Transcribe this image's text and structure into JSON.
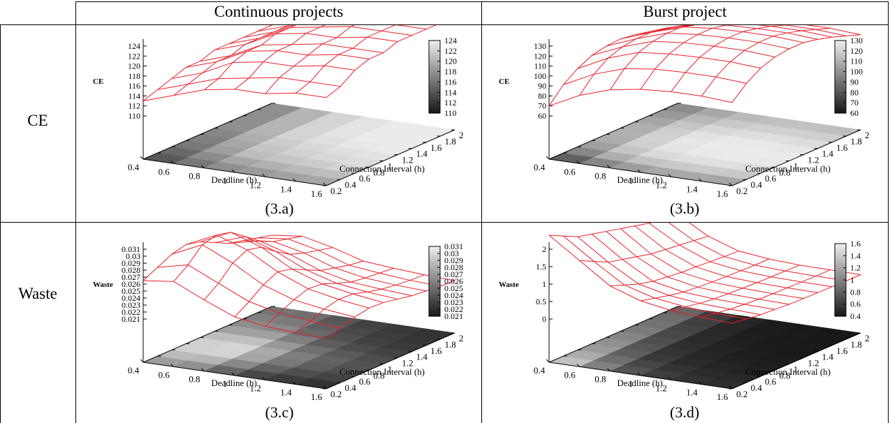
{
  "table": {
    "col_headers": [
      "Continuous projects",
      "Burst project"
    ],
    "row_labels": [
      "CE",
      "Waste"
    ]
  },
  "chart_data": [
    {
      "type": "surface3d",
      "panel": "(3.a)",
      "zlabel": "CE",
      "xlabel": "Deadline (h)",
      "ylabel": "Connection Interval (h)",
      "x_ticks": [
        0.4,
        0.6,
        0.8,
        1,
        1.2,
        1.4,
        1.6
      ],
      "y_ticks": [
        0.2,
        0.4,
        0.6,
        0.8,
        1,
        1.2,
        1.4,
        1.6,
        1.8,
        2
      ],
      "x_tick_labels": [
        "0.4",
        "0.6",
        "0.8",
        "1",
        "1.2",
        "1.4",
        "1.6"
      ],
      "y_tick_labels": [
        "0.2",
        "0.4",
        "0.6",
        "0.8",
        "1",
        "1.2",
        "1.4",
        "1.6",
        "1.8",
        "2"
      ],
      "z_ticks": [
        "110",
        "112",
        "114",
        "116",
        "118",
        "120",
        "122",
        "124"
      ],
      "colorbar_ticks": [
        "110",
        "112",
        "114",
        "116",
        "118",
        "120",
        "122",
        "124"
      ],
      "zlim": [
        110,
        124
      ],
      "z": [
        [
          113,
          114,
          115,
          116,
          116,
          117,
          117,
          117,
          117,
          117
        ],
        [
          115,
          116,
          117,
          118,
          118,
          119,
          119,
          119,
          119,
          119
        ],
        [
          117,
          118,
          120,
          121,
          121,
          122,
          122,
          122,
          122,
          122
        ],
        [
          118,
          119,
          121,
          122,
          122,
          123,
          123,
          123,
          123,
          123
        ],
        [
          118,
          120,
          121,
          122,
          123,
          123,
          124,
          124,
          124,
          124
        ],
        [
          119,
          120,
          122,
          123,
          123,
          124,
          124,
          124,
          124,
          124
        ],
        [
          119,
          120,
          122,
          123,
          123,
          124,
          124,
          124,
          124,
          124
        ]
      ]
    },
    {
      "type": "surface3d",
      "panel": "(3.b)",
      "zlabel": "CE",
      "xlabel": "Deadline (h)",
      "ylabel": "Connection Interval (h)",
      "x_ticks": [
        0.4,
        0.6,
        0.8,
        1,
        1.2,
        1.4,
        1.6
      ],
      "y_ticks": [
        0.2,
        0.4,
        0.6,
        0.8,
        1,
        1.2,
        1.4,
        1.6,
        1.8,
        2
      ],
      "x_tick_labels": [
        "0.4",
        "0.6",
        "0.8",
        "1",
        "1.2",
        "1.4",
        "1.6"
      ],
      "y_tick_labels": [
        "0.2",
        "0.4",
        "0.6",
        "0.8",
        "1",
        "1.2",
        "1.4",
        "1.6",
        "1.8",
        "2"
      ],
      "z_ticks": [
        "60",
        "70",
        "80",
        "90",
        "100",
        "110",
        "120",
        "130"
      ],
      "colorbar_ticks": [
        "60",
        "70",
        "80",
        "90",
        "100",
        "110",
        "120",
        "130"
      ],
      "zlim": [
        60,
        130
      ],
      "z": [
        [
          70,
          85,
          95,
          102,
          105,
          106,
          104,
          100,
          96,
          92
        ],
        [
          85,
          100,
          110,
          115,
          117,
          117,
          115,
          111,
          106,
          102
        ],
        [
          95,
          110,
          120,
          125,
          127,
          127,
          124,
          120,
          115,
          110
        ],
        [
          100,
          114,
          123,
          128,
          130,
          130,
          127,
          123,
          118,
          113
        ],
        [
          102,
          115,
          124,
          129,
          131,
          131,
          128,
          124,
          119,
          114
        ],
        [
          102,
          115,
          124,
          129,
          131,
          131,
          128,
          124,
          119,
          114
        ],
        [
          100,
          113,
          122,
          127,
          129,
          129,
          126,
          122,
          117,
          112
        ]
      ]
    },
    {
      "type": "surface3d",
      "panel": "(3.c)",
      "zlabel": "Waste",
      "xlabel": "Deadline (h)",
      "ylabel": "Connection Interval (h)",
      "x_ticks": [
        0.4,
        0.6,
        0.8,
        1,
        1.2,
        1.4,
        1.6
      ],
      "y_ticks": [
        0.2,
        0.4,
        0.6,
        0.8,
        1,
        1.2,
        1.4,
        1.6,
        1.8,
        2
      ],
      "x_tick_labels": [
        "0.4",
        "0.6",
        "0.8",
        "1",
        "1.2",
        "1.4",
        "1.6"
      ],
      "y_tick_labels": [
        "0.2",
        "0.4",
        "0.6",
        "0.8",
        "1",
        "1.2",
        "1.4",
        "1.6",
        "1.8",
        "2"
      ],
      "z_ticks": [
        "0.021",
        "0.022",
        "0.023",
        "0.024",
        "0.025",
        "0.026",
        "0.027",
        "0.028",
        "0.029",
        "0.03",
        "0.031"
      ],
      "colorbar_ticks": [
        "0.021",
        "0.022",
        "0.023",
        "0.024",
        "0.025",
        "0.026",
        "0.027",
        "0.028",
        "0.029",
        "0.03",
        "0.031"
      ],
      "zlim": [
        0.021,
        0.031
      ],
      "z": [
        [
          0.0265,
          0.0275,
          0.0285,
          0.029,
          0.0285,
          0.0275,
          0.0265,
          0.026,
          0.0255,
          0.025
        ],
        [
          0.027,
          0.0285,
          0.0305,
          0.031,
          0.0305,
          0.029,
          0.0275,
          0.0265,
          0.026,
          0.0255
        ],
        [
          0.025,
          0.0265,
          0.0285,
          0.0295,
          0.029,
          0.0275,
          0.0262,
          0.0255,
          0.025,
          0.0245
        ],
        [
          0.0232,
          0.0245,
          0.026,
          0.027,
          0.0265,
          0.0255,
          0.0245,
          0.024,
          0.0235,
          0.0232
        ],
        [
          0.0225,
          0.0235,
          0.0245,
          0.0252,
          0.025,
          0.0242,
          0.0235,
          0.0232,
          0.023,
          0.0228
        ],
        [
          0.0222,
          0.023,
          0.0238,
          0.0243,
          0.0242,
          0.0236,
          0.0231,
          0.0228,
          0.0226,
          0.0225
        ],
        [
          0.022,
          0.0226,
          0.0233,
          0.0237,
          0.0236,
          0.0232,
          0.0228,
          0.0226,
          0.0224,
          0.0223
        ]
      ]
    },
    {
      "type": "surface3d",
      "panel": "(3.d)",
      "zlabel": "Waste",
      "xlabel": "Deadline (h)",
      "ylabel": "Connection Interval (h)",
      "x_ticks": [
        0.4,
        0.6,
        0.8,
        1,
        1.2,
        1.4,
        1.6
      ],
      "y_ticks": [
        0.2,
        0.4,
        0.6,
        0.8,
        1,
        1.2,
        1.4,
        1.6,
        1.8,
        2
      ],
      "x_tick_labels": [
        "0.4",
        "0.6",
        "0.8",
        "1",
        "1.2",
        "1.4",
        "1.6"
      ],
      "y_tick_labels": [
        "0.2",
        "0.4",
        "0.6",
        "0.8",
        "1",
        "1.2",
        "1.4",
        "1.6",
        "1.8",
        "2"
      ],
      "z_ticks": [
        "0",
        "0.5",
        "1",
        "1.5",
        "2"
      ],
      "colorbar_ticks": [
        "0.4",
        "0.6",
        "0.8",
        "1",
        "1.2",
        "1.4",
        "1.6"
      ],
      "zlim": [
        0,
        2
      ],
      "z": [
        [
          2.4,
          2.2,
          2.0,
          1.9,
          1.8,
          1.7,
          1.6,
          1.5,
          1.45,
          1.4
        ],
        [
          1.8,
          1.6,
          1.4,
          1.3,
          1.2,
          1.1,
          1.05,
          1.0,
          0.95,
          0.9
        ],
        [
          1.2,
          1.05,
          0.9,
          0.8,
          0.75,
          0.7,
          0.68,
          0.65,
          0.62,
          0.6
        ],
        [
          0.9,
          0.8,
          0.7,
          0.62,
          0.58,
          0.55,
          0.53,
          0.52,
          0.5,
          0.5
        ],
        [
          0.75,
          0.68,
          0.6,
          0.55,
          0.52,
          0.5,
          0.48,
          0.47,
          0.46,
          0.45
        ],
        [
          0.68,
          0.62,
          0.56,
          0.52,
          0.49,
          0.47,
          0.46,
          0.45,
          0.44,
          0.44
        ],
        [
          0.64,
          0.58,
          0.53,
          0.5,
          0.47,
          0.46,
          0.45,
          0.44,
          0.43,
          0.43
        ]
      ]
    }
  ]
}
